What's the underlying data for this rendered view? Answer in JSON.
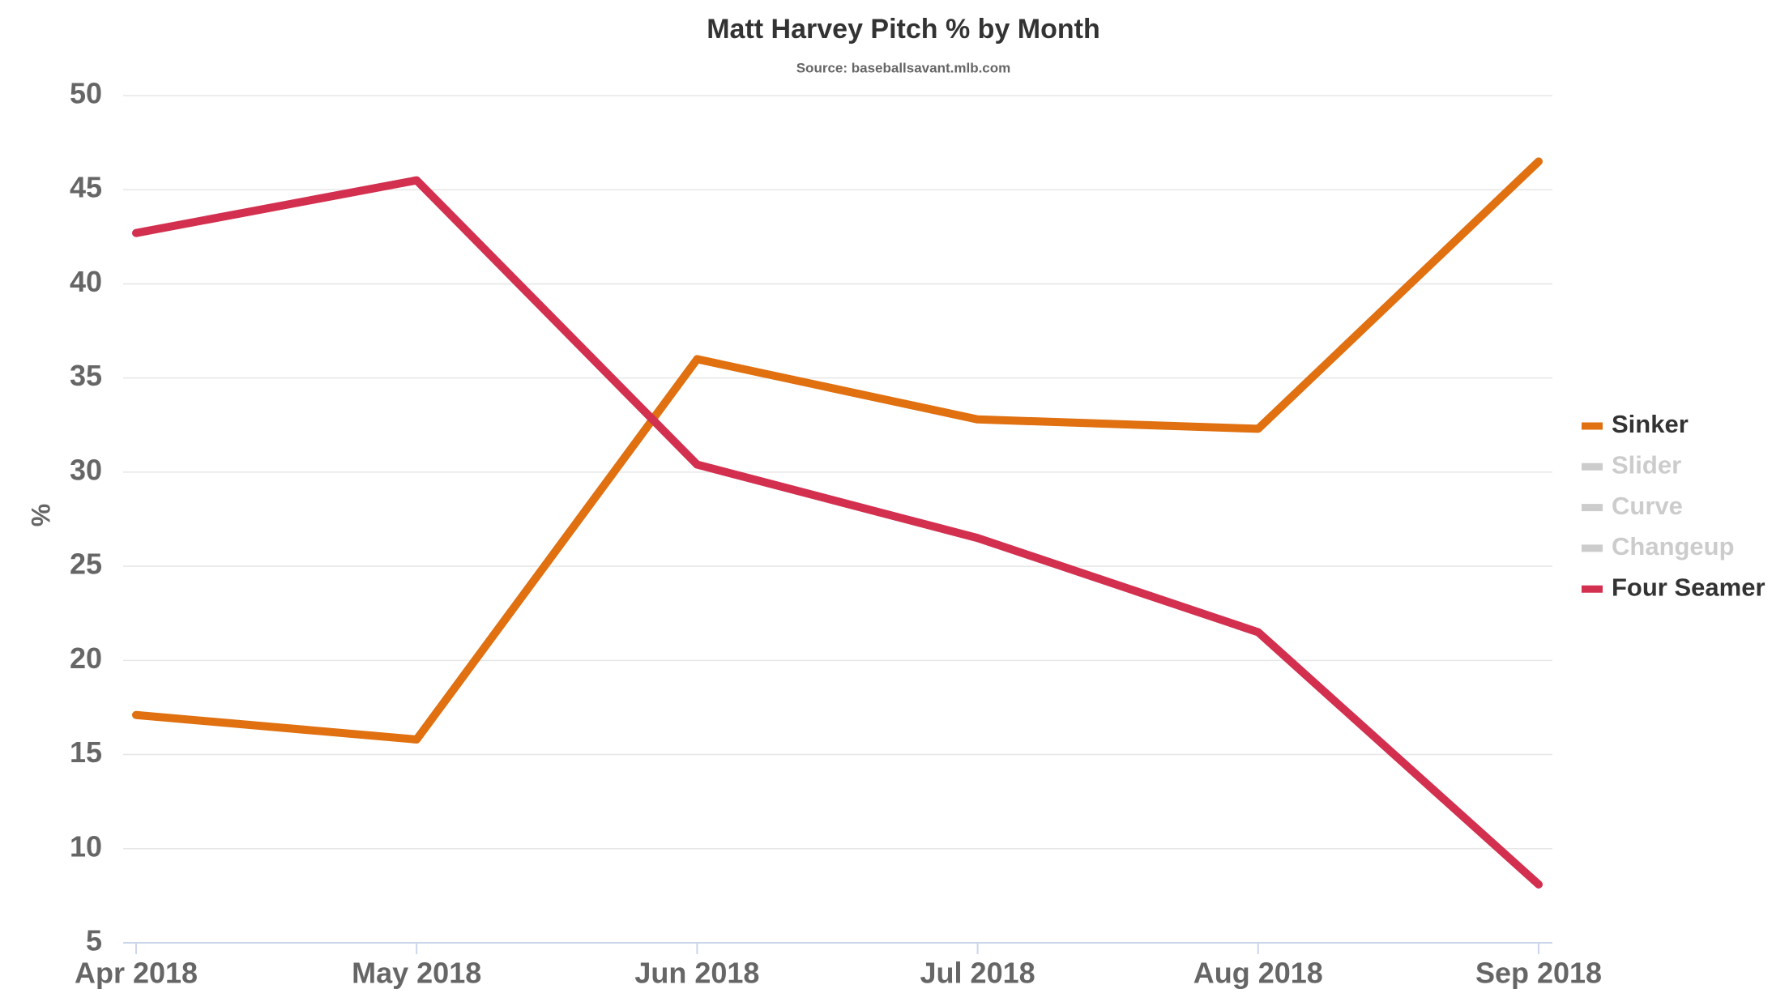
{
  "chart_data": {
    "type": "line",
    "title": "Matt Harvey Pitch % by Month",
    "subtitle": "Source: baseballsavant.mlb.com",
    "y_label": "%",
    "categories": [
      "Apr 2018",
      "May 2018",
      "Jun 2018",
      "Jul 2018",
      "Aug 2018",
      "Sep 2018"
    ],
    "series": [
      {
        "name": "Sinker",
        "color": "#e07010",
        "visible": true,
        "values": [
          17.1,
          15.8,
          36.0,
          32.8,
          32.3,
          46.5
        ]
      },
      {
        "name": "Slider",
        "color": "#cccccc",
        "visible": false,
        "values": [
          null,
          null,
          null,
          null,
          null,
          null
        ]
      },
      {
        "name": "Curve",
        "color": "#cccccc",
        "visible": false,
        "values": [
          null,
          null,
          null,
          null,
          null,
          null
        ]
      },
      {
        "name": "Changeup",
        "color": "#cccccc",
        "visible": false,
        "values": [
          null,
          null,
          null,
          null,
          null,
          null
        ]
      },
      {
        "name": "Four Seamer",
        "color": "#d3304f",
        "visible": true,
        "values": [
          42.7,
          45.5,
          30.4,
          26.5,
          21.5,
          8.1
        ]
      }
    ],
    "ylim": [
      5,
      50
    ],
    "yticks": [
      5,
      10,
      15,
      20,
      25,
      30,
      35,
      40,
      45,
      50
    ],
    "grid": true,
    "legend": "right"
  }
}
